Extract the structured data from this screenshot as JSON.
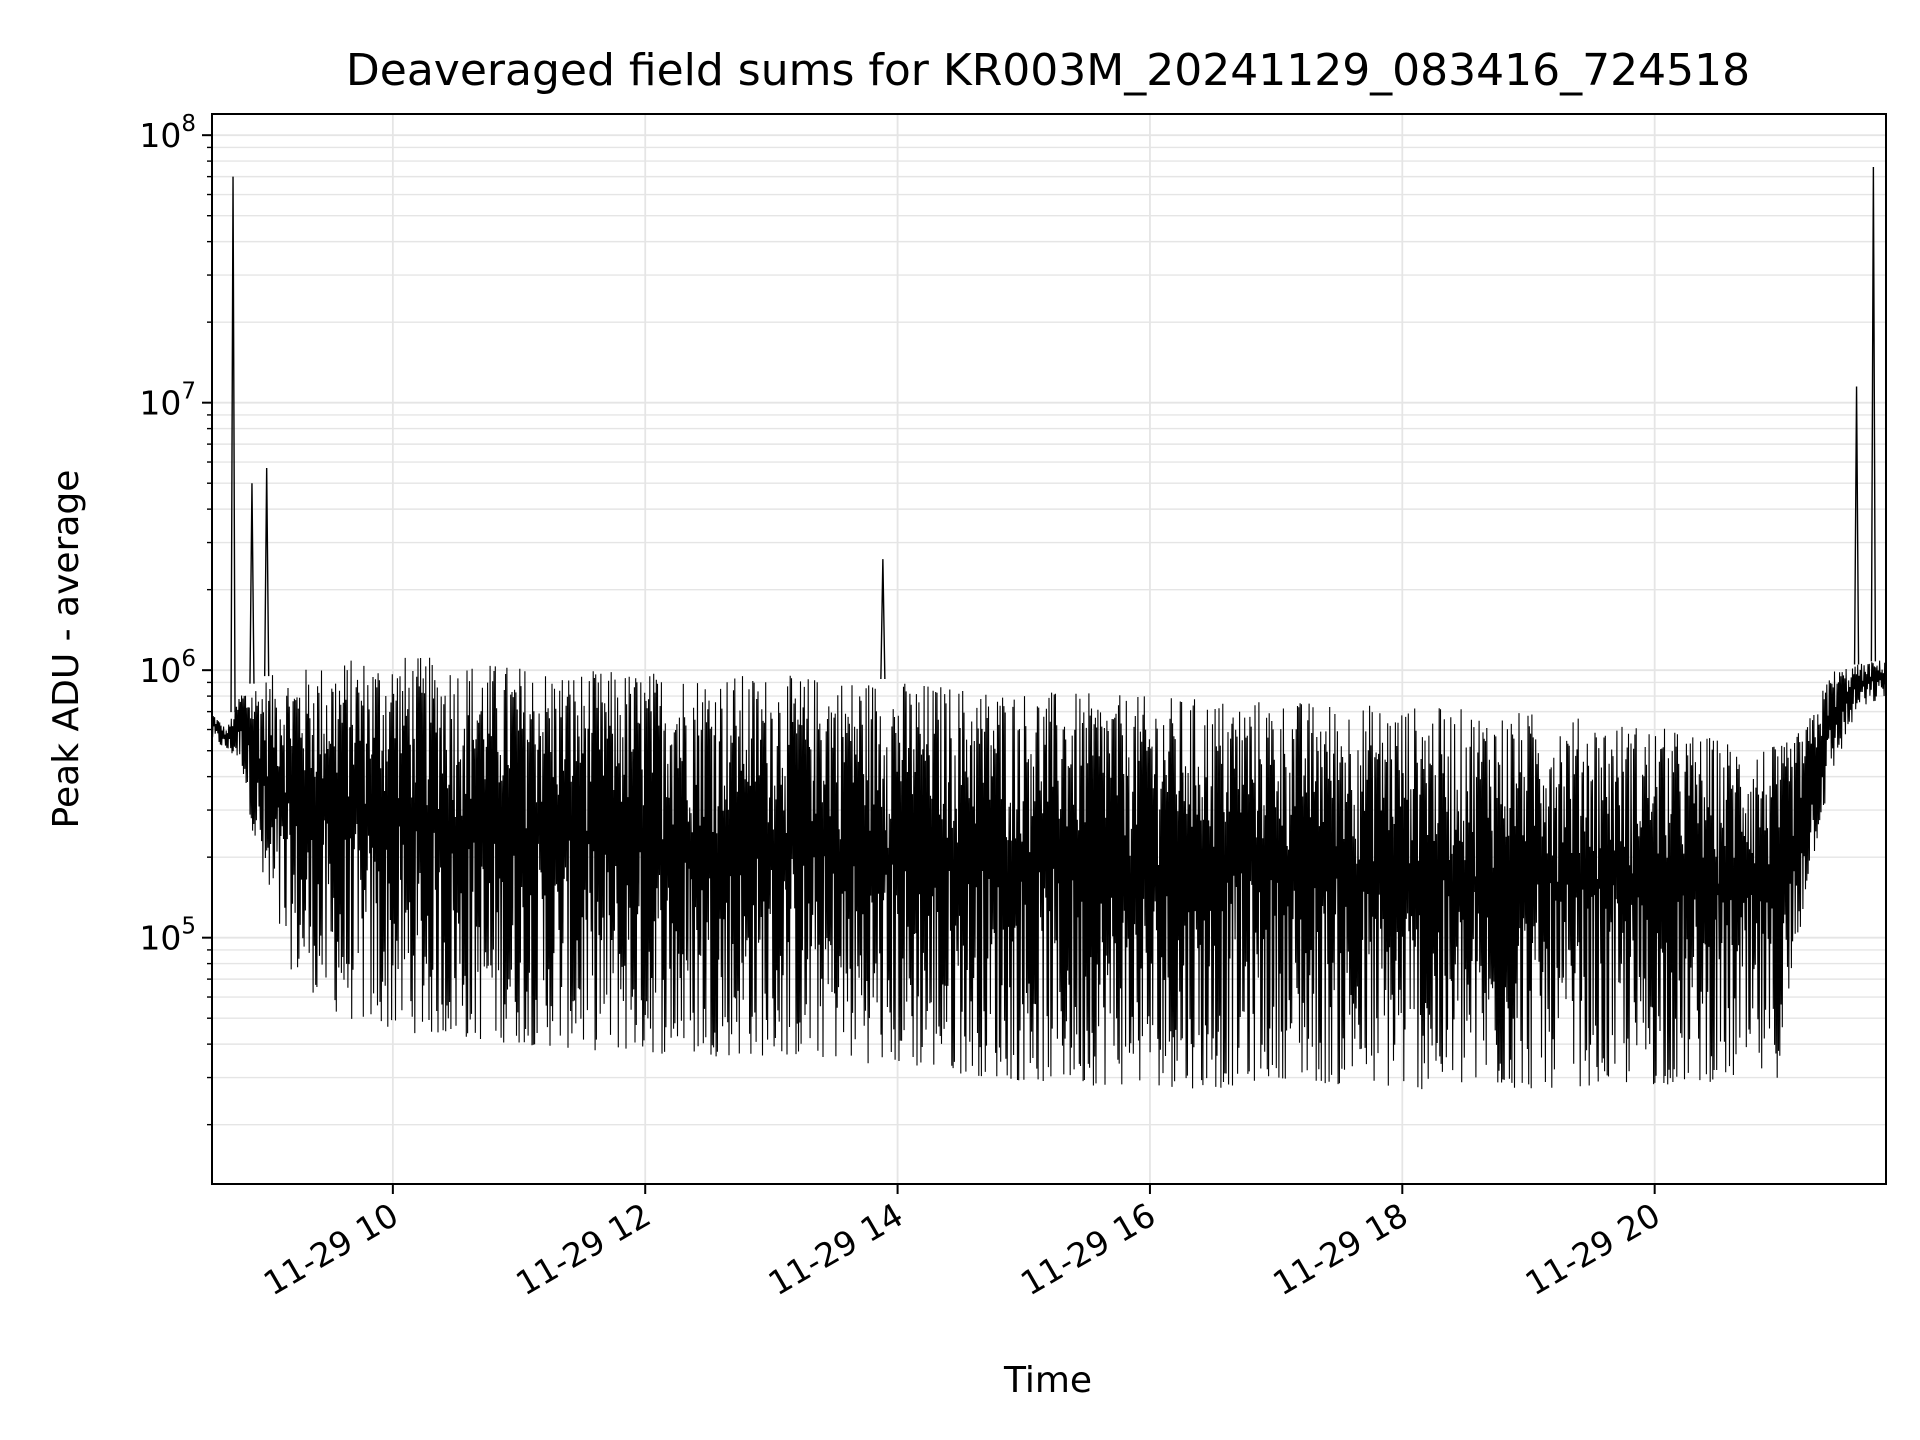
{
  "chart_data": {
    "type": "line",
    "title": "Deaveraged field sums for KR003M_20241129_083416_724518",
    "xlabel": "Time",
    "ylabel": "Peak ADU - average",
    "y_scale": "log",
    "ylim": [
      12000,
      120000000
    ],
    "xlim": [
      "11-29 08:34",
      "11-29 21:50"
    ],
    "x_ticks": [
      {
        "t": "11-29 10:00",
        "label": "11-29 10"
      },
      {
        "t": "11-29 12:00",
        "label": "11-29 12"
      },
      {
        "t": "11-29 14:00",
        "label": "11-29 14"
      },
      {
        "t": "11-29 16:00",
        "label": "11-29 16"
      },
      {
        "t": "11-29 18:00",
        "label": "11-29 18"
      },
      {
        "t": "11-29 20:00",
        "label": "11-29 20"
      }
    ],
    "y_ticks": [
      {
        "value": 100000,
        "base": "10",
        "exp": "5"
      },
      {
        "value": 1000000,
        "base": "10",
        "exp": "6"
      },
      {
        "value": 10000000,
        "base": "10",
        "exp": "7"
      },
      {
        "value": 100000000,
        "base": "10",
        "exp": "8"
      }
    ],
    "grid": true,
    "line_color": "#000000",
    "grid_color": "#e5e5e5",
    "series": [
      {
        "envelope": {
          "x": [
            "11-29 08:34",
            "11-29 08:41",
            "11-29 08:48",
            "11-29 09:00",
            "11-29 09:12",
            "11-29 09:24",
            "11-29 09:36",
            "11-29 10:00",
            "11-29 10:30",
            "11-29 11:00",
            "11-29 11:30",
            "11-29 12:00",
            "11-29 12:30",
            "11-29 13:00",
            "11-29 13:30",
            "11-29 14:00",
            "11-29 14:30",
            "11-29 15:00",
            "11-29 15:30",
            "11-29 16:00",
            "11-29 16:30",
            "11-29 17:00",
            "11-29 17:30",
            "11-29 18:00",
            "11-29 18:30",
            "11-29 19:00",
            "11-29 19:30",
            "11-29 20:00",
            "11-29 20:30",
            "11-29 21:00",
            "11-29 21:12",
            "11-29 21:24",
            "11-29 21:36",
            "11-29 21:50"
          ],
          "upper": [
            700000,
            600000,
            850000,
            950000,
            1000000,
            1050000,
            1100000,
            1150000,
            1100000,
            1050000,
            1000000,
            1000000,
            980000,
            960000,
            950000,
            920000,
            880000,
            850000,
            820000,
            800000,
            790000,
            780000,
            760000,
            740000,
            720000,
            700000,
            660000,
            620000,
            560000,
            520000,
            620000,
            1000000,
            1050000,
            1100000
          ],
          "lower": [
            550000,
            500000,
            450000,
            120000,
            75000,
            60000,
            50000,
            45000,
            42000,
            40000,
            38000,
            37000,
            36000,
            36000,
            35000,
            33000,
            31000,
            29000,
            28000,
            28000,
            27000,
            30000,
            28000,
            27000,
            27000,
            27000,
            28000,
            28000,
            29000,
            30000,
            150000,
            400000,
            700000,
            800000
          ]
        },
        "peaks": [
          {
            "t": "11-29 08:44",
            "value": 70000000
          },
          {
            "t": "11-29 08:53",
            "value": 5000000
          },
          {
            "t": "11-29 09:00",
            "value": 5700000
          },
          {
            "t": "11-29 13:53",
            "value": 2600000
          },
          {
            "t": "11-29 21:36",
            "value": 11500000
          },
          {
            "t": "11-29 21:44",
            "value": 76000000
          }
        ]
      }
    ]
  }
}
